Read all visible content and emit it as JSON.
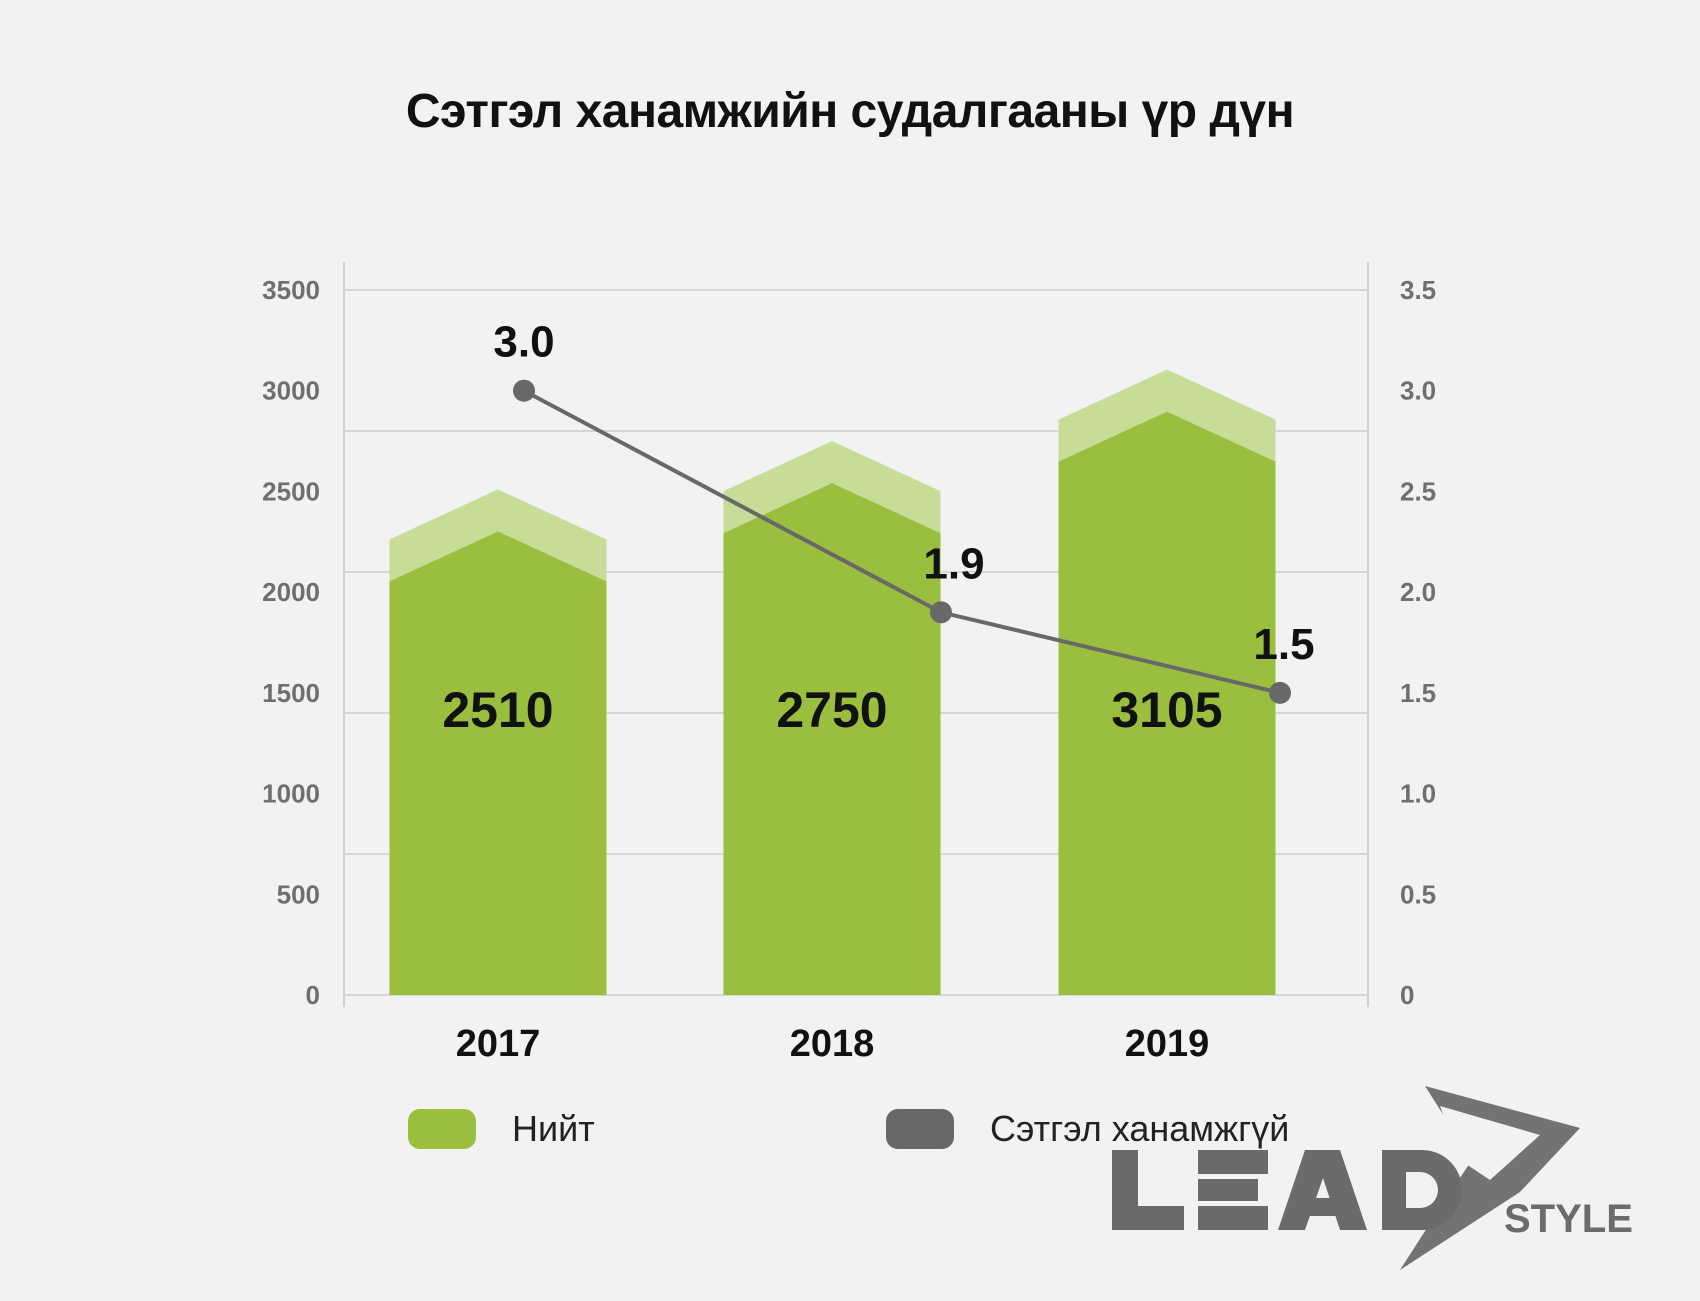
{
  "chart_data": {
    "type": "bar",
    "title": "Сэтгэл ханамжийн судалгааны үр дүн",
    "categories": [
      "2017",
      "2018",
      "2019"
    ],
    "series": [
      {
        "name": "Нийт",
        "type": "bar",
        "axis": "left",
        "values": [
          2510,
          2750,
          3105
        ],
        "color": "#9abf3f",
        "cap_color": "#c6dc97"
      },
      {
        "name": "Сэтгэл ханамжгүй",
        "type": "line",
        "axis": "right",
        "values": [
          3.0,
          1.9,
          1.5
        ],
        "color": "#686868"
      }
    ],
    "y_left": {
      "ylim": [
        0,
        3500
      ],
      "ticks": [
        "0",
        "500",
        "1000",
        "1500",
        "2000",
        "2500",
        "3000",
        "3500"
      ]
    },
    "y_right": {
      "ylim": [
        0,
        3.5
      ],
      "ticks": [
        "0",
        "0.5",
        "1.0",
        "1.5",
        "2.0",
        "2.5",
        "3.0",
        "3.5"
      ]
    },
    "bar_labels": [
      "2510",
      "2750",
      "3105"
    ],
    "point_labels": [
      "3.0",
      "1.9",
      "1.5"
    ],
    "grid": true,
    "legend": "bottom"
  },
  "logo": {
    "text": "LEAD",
    "subtext": "STYLE"
  }
}
